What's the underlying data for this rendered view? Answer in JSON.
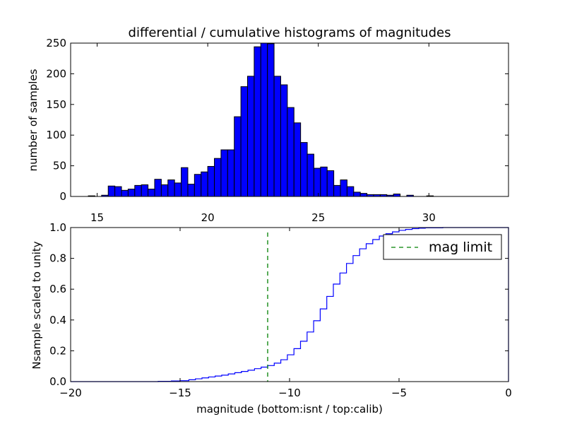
{
  "chart_data": [
    {
      "type": "bar",
      "title": "differential / cumulative histograms of magnitudes",
      "ylabel": "number of samples",
      "xlabel": "",
      "xlim": [
        13.8,
        33.6
      ],
      "ylim": [
        0,
        250
      ],
      "xticks": [
        15,
        20,
        25,
        30
      ],
      "yticks": [
        0,
        50,
        100,
        150,
        200,
        250
      ],
      "bar_color": "#0000ff",
      "bin_width": 0.3,
      "bin_starts": [
        14.6,
        14.9,
        15.2,
        15.5,
        15.8,
        16.1,
        16.4,
        16.7,
        17.0,
        17.3,
        17.6,
        17.9,
        18.2,
        18.5,
        18.8,
        19.1,
        19.4,
        19.7,
        20.0,
        20.3,
        20.6,
        20.9,
        21.2,
        21.5,
        21.8,
        22.1,
        22.4,
        22.7,
        23.0,
        23.3,
        23.6,
        23.9,
        24.2,
        24.5,
        24.8,
        25.1,
        25.4,
        25.7,
        26.0,
        26.3,
        26.6,
        26.9,
        27.2,
        27.5,
        27.8,
        28.1,
        28.4,
        28.7,
        29.0,
        29.3,
        29.6,
        29.9,
        30.2,
        30.5,
        30.8,
        31.1,
        31.4
      ],
      "values": [
        1,
        0,
        2,
        17,
        16,
        10,
        12,
        18,
        19,
        12,
        28,
        19,
        27,
        22,
        47,
        20,
        36,
        40,
        49,
        62,
        76,
        76,
        130,
        179,
        196,
        244,
        258,
        249,
        196,
        182,
        145,
        120,
        88,
        69,
        46,
        48,
        42,
        18,
        27,
        16,
        7,
        5,
        3,
        3,
        3,
        2,
        4,
        0,
        2,
        0,
        0,
        1,
        0,
        0,
        0,
        0,
        0
      ]
    },
    {
      "type": "line",
      "ylabel": "Nsample scaled to unity",
      "xlabel": "magnitude (bottom:isnt / top:calib)",
      "xlim": [
        -20,
        0
      ],
      "ylim": [
        0,
        1
      ],
      "xticks": [
        -20,
        -15,
        -10,
        -5,
        0
      ],
      "xtick_labels": [
        "−20",
        "−15",
        "−10",
        "−5",
        "0"
      ],
      "yticks": [
        0.0,
        0.2,
        0.4,
        0.6,
        0.8,
        1.0
      ],
      "ytick_labels": [
        "0.0",
        "0.2",
        "0.4",
        "0.6",
        "0.8",
        "1.0"
      ],
      "step_color": "#0000ff",
      "cumulative_step": {
        "x": [
          -20,
          -16.0,
          -15.4,
          -15.0,
          -14.6,
          -14.3,
          -14.0,
          -13.7,
          -13.4,
          -13.1,
          -12.8,
          -12.5,
          -12.2,
          -11.9,
          -11.6,
          -11.3,
          -11.0,
          -10.7,
          -10.4,
          -10.1,
          -9.8,
          -9.5,
          -9.2,
          -8.9,
          -8.6,
          -8.3,
          -8.0,
          -7.7,
          -7.4,
          -7.1,
          -6.8,
          -6.5,
          -6.2,
          -5.9,
          -5.6,
          -5.3,
          -5.0,
          -4.7,
          -4.4,
          -4.1,
          -3.8,
          -3.0,
          -0.05
        ],
        "y": [
          0.0,
          0.002,
          0.004,
          0.006,
          0.012,
          0.018,
          0.024,
          0.03,
          0.036,
          0.042,
          0.05,
          0.058,
          0.066,
          0.074,
          0.084,
          0.094,
          0.104,
          0.12,
          0.142,
          0.174,
          0.214,
          0.262,
          0.322,
          0.395,
          0.472,
          0.553,
          0.633,
          0.705,
          0.767,
          0.818,
          0.862,
          0.895,
          0.922,
          0.945,
          0.96,
          0.972,
          0.982,
          0.988,
          0.993,
          0.996,
          0.998,
          1.0,
          1.0
        ]
      },
      "mag_limit": {
        "x": -11.0,
        "color": "#008000",
        "legend_label": "mag limit"
      },
      "legend_position": "upper right"
    }
  ]
}
